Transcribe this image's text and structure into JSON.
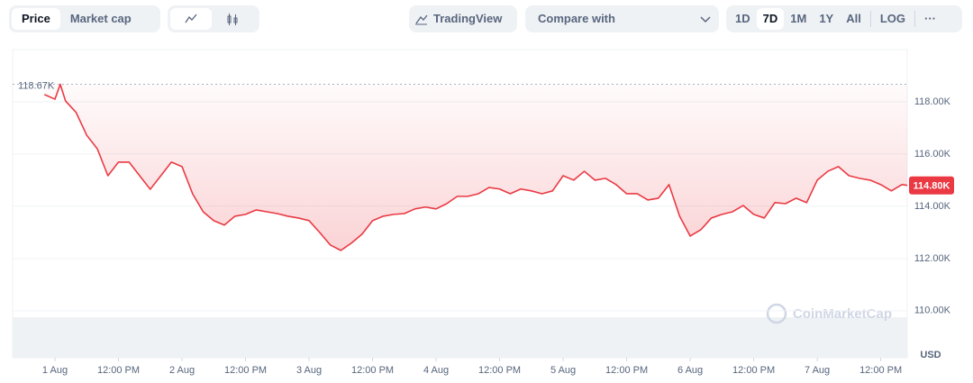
{
  "toolbar": {
    "modes": [
      "Price",
      "Market cap"
    ],
    "tradingview": "TradingView",
    "compare": "Compare with",
    "ranges": [
      "1D",
      "7D",
      "1M",
      "1Y",
      "All"
    ],
    "log": "LOG",
    "more": "···"
  },
  "chart_data": {
    "type": "line",
    "series": [
      {
        "name": "Price",
        "color": "#ea3943",
        "x": [
          -2,
          0,
          1,
          2,
          4,
          6,
          8,
          10,
          12,
          14,
          16,
          18,
          20,
          22,
          24,
          26,
          28,
          30,
          32,
          34,
          36,
          38,
          40,
          42,
          44,
          46,
          48,
          50,
          52,
          54,
          56,
          58,
          60,
          62,
          64,
          66,
          68,
          70,
          72,
          74,
          76,
          78,
          80,
          82,
          84,
          86,
          88,
          90,
          92,
          94,
          96,
          98,
          100,
          102,
          104,
          106,
          108,
          110,
          112,
          114,
          116,
          118,
          120,
          122,
          124,
          126,
          128,
          130,
          132,
          134,
          136,
          138,
          140,
          142,
          144,
          146,
          148,
          150,
          152,
          154,
          156,
          158,
          160,
          161
        ],
        "values": [
          118280,
          118100,
          118670,
          118030,
          117590,
          116720,
          116200,
          115170,
          115690,
          115690,
          115170,
          114650,
          115170,
          115690,
          115520,
          114480,
          113790,
          113450,
          113280,
          113620,
          113690,
          113860,
          113790,
          113720,
          113620,
          113550,
          113450,
          113000,
          112520,
          112310,
          112590,
          112930,
          113450,
          113620,
          113690,
          113720,
          113900,
          113970,
          113900,
          114100,
          114380,
          114380,
          114480,
          114720,
          114660,
          114480,
          114660,
          114590,
          114480,
          114590,
          115170,
          115000,
          115340,
          115000,
          115070,
          114830,
          114480,
          114480,
          114240,
          114310,
          114830,
          113620,
          112860,
          113100,
          113550,
          113690,
          113790,
          114030,
          113690,
          113550,
          114140,
          114100,
          114310,
          114140,
          115000,
          115340,
          115520,
          115170,
          115070,
          115000,
          114830,
          114590,
          114830,
          114800
        ]
      }
    ],
    "high": {
      "value": 118670,
      "label": "118.67K"
    },
    "current": {
      "value": 114800,
      "label": "114.80K"
    },
    "xlim": [
      -8,
      161
    ],
    "ylim": [
      108200,
      120000
    ],
    "xticks": [
      {
        "value": 0,
        "label": "1 Aug"
      },
      {
        "value": 12,
        "label": "12:00 PM"
      },
      {
        "value": 24,
        "label": "2 Aug"
      },
      {
        "value": 36,
        "label": "12:00 PM"
      },
      {
        "value": 48,
        "label": "3 Aug"
      },
      {
        "value": 60,
        "label": "12:00 PM"
      },
      {
        "value": 72,
        "label": "4 Aug"
      },
      {
        "value": 84,
        "label": "12:00 PM"
      },
      {
        "value": 96,
        "label": "5 Aug"
      },
      {
        "value": 108,
        "label": "12:00 PM"
      },
      {
        "value": 120,
        "label": "6 Aug"
      },
      {
        "value": 132,
        "label": "12:00 PM"
      },
      {
        "value": 144,
        "label": "7 Aug"
      },
      {
        "value": 156,
        "label": "12:00 PM"
      }
    ],
    "yticks": [
      {
        "value": 110000,
        "label": "110.00K"
      },
      {
        "value": 112000,
        "label": "112.00K"
      },
      {
        "value": 114000,
        "label": "114.00K"
      },
      {
        "value": 116000,
        "label": "116.00K"
      },
      {
        "value": 118000,
        "label": "118.00K"
      }
    ],
    "grid": true,
    "currency": "USD",
    "watermark": "CoinMarketCap"
  }
}
